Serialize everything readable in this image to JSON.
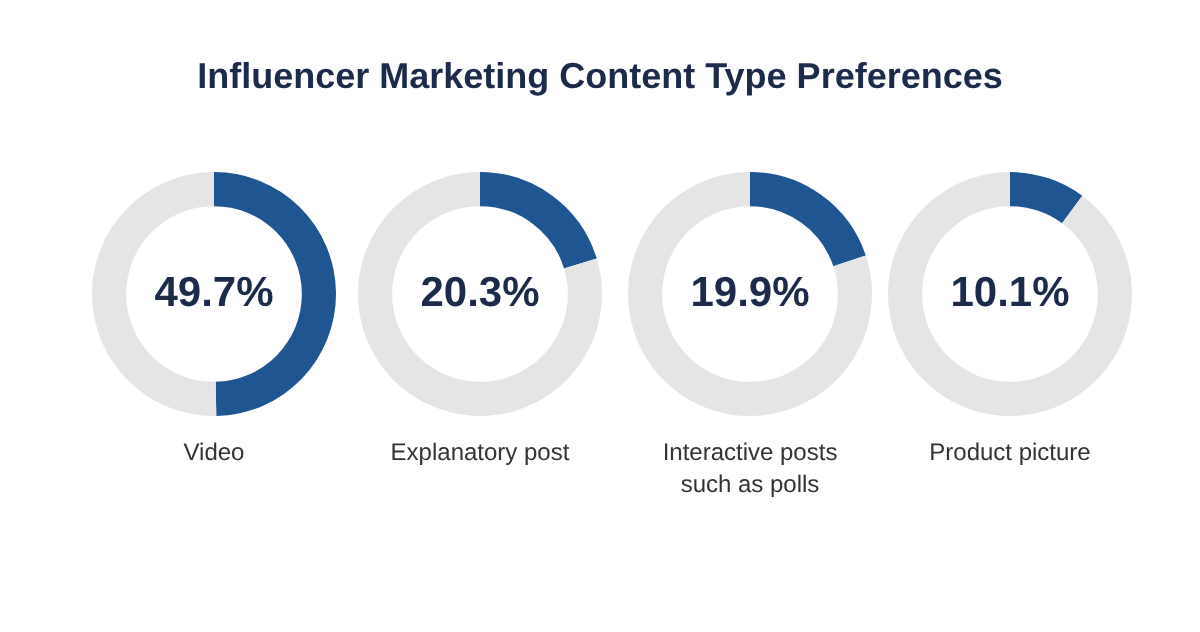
{
  "chart_data": [
    {
      "type": "donut",
      "title": "Influencer Marketing Content Type Preferences",
      "xlabel": "Video",
      "categories": [
        null,
        null
      ],
      "values": [
        49.7,
        50.3
      ],
      "colors": [
        "#1f5591",
        "#e5e5e5"
      ],
      "value_labels": [
        "49.7%",
        null
      ]
    },
    {
      "type": "donut",
      "xlabel": "Explanatory post",
      "categories": [
        null,
        null
      ],
      "values": [
        20.3,
        79.7
      ],
      "colors": [
        "#1f5591",
        "#e5e5e5"
      ],
      "value_labels": [
        "20.3%",
        null
      ]
    },
    {
      "type": "donut",
      "xlabel": "Interactive posts such as polls",
      "categories": [
        null,
        null
      ],
      "values": [
        19.9,
        80.1
      ],
      "colors": [
        "#1f5591",
        "#e5e5e5"
      ],
      "value_labels": [
        "19.9%",
        null
      ]
    },
    {
      "type": "donut",
      "xlabel": "Product picture",
      "categories": [
        null,
        null
      ],
      "values": [
        10.1,
        89.9
      ],
      "colors": [
        "#1f5591",
        "#e5e5e5"
      ],
      "value_labels": [
        "10.1%",
        null
      ]
    }
  ]
}
